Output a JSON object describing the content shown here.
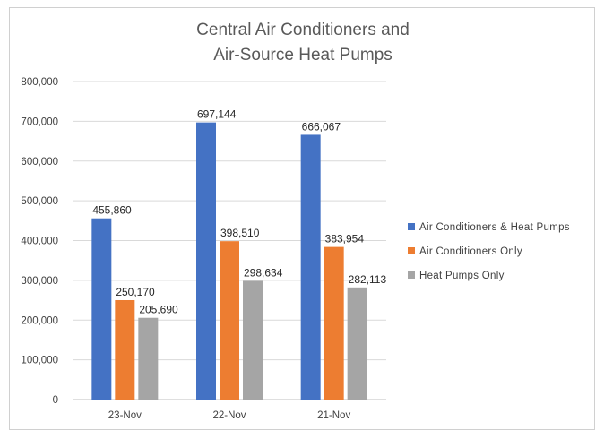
{
  "chart_data": {
    "type": "bar",
    "title_lines": [
      "Central Air Conditioners and",
      "Air-Source Heat Pumps"
    ],
    "categories": [
      "23-Nov",
      "22-Nov",
      "21-Nov"
    ],
    "series": [
      {
        "name": "Air Conditioners & Heat Pumps",
        "color": "#4472C4",
        "values": [
          455860,
          697144,
          666067
        ],
        "labels": [
          "455,860",
          "697,144",
          "666,067"
        ]
      },
      {
        "name": "Air Conditioners Only",
        "color": "#ED7D31",
        "values": [
          250170,
          398510,
          383954
        ],
        "labels": [
          "250,170",
          "398,510",
          "383,954"
        ]
      },
      {
        "name": "Heat Pumps Only",
        "color": "#A5A5A5",
        "values": [
          205690,
          298634,
          282113
        ],
        "labels": [
          "205,690",
          "298,634",
          "282,113"
        ]
      }
    ],
    "ylim": [
      0,
      800000
    ],
    "yticks": [
      0,
      100000,
      200000,
      300000,
      400000,
      500000,
      600000,
      700000,
      800000
    ],
    "ytick_labels": [
      "0",
      "100,000",
      "200,000",
      "300,000",
      "400,000",
      "500,000",
      "600,000",
      "700,000",
      "800,000"
    ],
    "grid": true,
    "legend_position": "right"
  }
}
